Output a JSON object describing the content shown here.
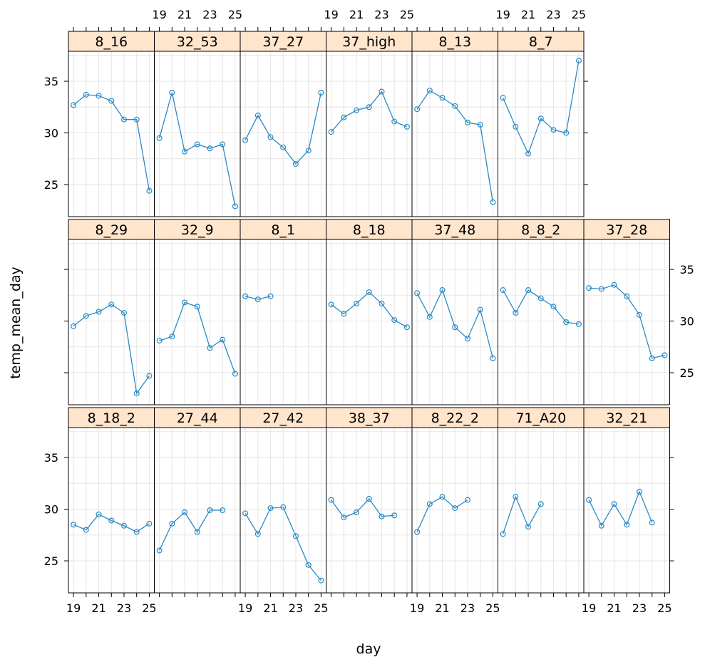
{
  "chart_data": {
    "type": "line",
    "xlabel": "day",
    "ylabel": "temp_mean_day",
    "x_ticks": [
      19,
      21,
      23,
      25
    ],
    "y_ticks": [
      25,
      30,
      35
    ],
    "xlim": [
      18.6,
      25.4
    ],
    "ylim": [
      21.9,
      37.9
    ],
    "grid": true,
    "colors": {
      "line": "#2b8ac4",
      "strip_bg": "#ffe5cc",
      "grid": "#e6e6e6",
      "frame": "#000000"
    },
    "panels": [
      {
        "label": "8_16",
        "row": 0,
        "col": 0,
        "x": [
          19,
          20,
          21,
          22,
          23,
          24,
          25
        ],
        "y": [
          32.7,
          33.7,
          33.6,
          33.1,
          31.3,
          31.3,
          24.4
        ]
      },
      {
        "label": "32_53",
        "row": 0,
        "col": 1,
        "x": [
          19,
          20,
          21,
          22,
          23,
          24,
          25
        ],
        "y": [
          29.5,
          33.9,
          28.2,
          28.9,
          28.5,
          28.9,
          22.9
        ]
      },
      {
        "label": "37_27",
        "row": 0,
        "col": 2,
        "x": [
          19,
          20,
          21,
          22,
          23,
          24,
          25
        ],
        "y": [
          29.3,
          31.7,
          29.6,
          28.6,
          27.0,
          28.3,
          33.9
        ]
      },
      {
        "label": "37_high",
        "row": 0,
        "col": 3,
        "x": [
          19,
          20,
          21,
          22,
          23,
          24,
          25
        ],
        "y": [
          30.1,
          31.5,
          32.2,
          32.5,
          34.0,
          31.1,
          30.6
        ]
      },
      {
        "label": "8_13",
        "row": 0,
        "col": 4,
        "x": [
          19,
          20,
          21,
          22,
          23,
          24,
          25
        ],
        "y": [
          32.3,
          34.1,
          33.4,
          32.6,
          31.0,
          30.8,
          23.3
        ]
      },
      {
        "label": "8_7",
        "row": 0,
        "col": 5,
        "x": [
          19,
          20,
          21,
          22,
          23,
          24,
          25
        ],
        "y": [
          33.4,
          30.6,
          28.0,
          31.4,
          30.3,
          30.0,
          37.0
        ]
      },
      {
        "label": "8_29",
        "row": 1,
        "col": 0,
        "x": [
          19,
          20,
          21,
          22,
          23,
          24,
          25
        ],
        "y": [
          29.5,
          30.5,
          30.9,
          31.6,
          30.8,
          23.0,
          24.7
        ]
      },
      {
        "label": "32_9",
        "row": 1,
        "col": 1,
        "x": [
          19,
          20,
          21,
          22,
          23,
          24,
          25
        ],
        "y": [
          28.1,
          28.5,
          31.8,
          31.4,
          27.4,
          28.2,
          24.9
        ]
      },
      {
        "label": "8_1",
        "row": 1,
        "col": 2,
        "x": [
          19,
          20,
          21
        ],
        "y": [
          32.4,
          32.1,
          32.4
        ]
      },
      {
        "label": "8_18",
        "row": 1,
        "col": 3,
        "x": [
          19,
          20,
          21,
          22,
          23,
          24,
          25
        ],
        "y": [
          31.6,
          30.7,
          31.7,
          32.8,
          31.7,
          30.1,
          29.4
        ]
      },
      {
        "label": "37_48",
        "row": 1,
        "col": 4,
        "x": [
          19,
          20,
          21,
          22,
          23,
          24,
          25
        ],
        "y": [
          32.7,
          30.4,
          33.0,
          29.4,
          28.3,
          31.1,
          26.4
        ]
      },
      {
        "label": "8_8_2",
        "row": 1,
        "col": 5,
        "x": [
          19,
          20,
          21,
          22,
          23,
          24,
          25
        ],
        "y": [
          33.0,
          30.8,
          33.0,
          32.2,
          31.4,
          29.9,
          29.7
        ]
      },
      {
        "label": "37_28",
        "row": 1,
        "col": 6,
        "x": [
          19,
          20,
          21,
          22,
          23,
          24,
          25
        ],
        "y": [
          33.2,
          33.1,
          33.5,
          32.4,
          30.6,
          26.4,
          26.7
        ]
      },
      {
        "label": "8_18_2",
        "row": 2,
        "col": 0,
        "x": [
          19,
          20,
          21,
          22,
          23,
          24,
          25
        ],
        "y": [
          28.5,
          28.0,
          29.5,
          28.9,
          28.4,
          27.8,
          28.6
        ]
      },
      {
        "label": "27_44",
        "row": 2,
        "col": 1,
        "x": [
          19,
          20,
          21,
          22,
          23,
          24
        ],
        "y": [
          26.0,
          28.6,
          29.7,
          27.8,
          29.9,
          29.9
        ]
      },
      {
        "label": "27_42",
        "row": 2,
        "col": 2,
        "x": [
          19,
          20,
          21,
          22,
          23,
          24,
          25
        ],
        "y": [
          29.6,
          27.6,
          30.1,
          30.2,
          27.4,
          24.6,
          23.1
        ]
      },
      {
        "label": "38_37",
        "row": 2,
        "col": 3,
        "x": [
          19,
          20,
          21,
          22,
          23,
          24
        ],
        "y": [
          30.9,
          29.2,
          29.7,
          31.0,
          29.3,
          29.4
        ]
      },
      {
        "label": "8_22_2",
        "row": 2,
        "col": 4,
        "x": [
          19,
          20,
          21,
          22,
          23
        ],
        "y": [
          27.8,
          30.5,
          31.2,
          30.1,
          30.9
        ]
      },
      {
        "label": "71_A20",
        "row": 2,
        "col": 5,
        "x": [
          19,
          20,
          21,
          22
        ],
        "y": [
          27.6,
          31.2,
          28.3,
          30.5
        ]
      },
      {
        "label": "32_21",
        "row": 2,
        "col": 6,
        "x": [
          19,
          20,
          21,
          22,
          23,
          24
        ],
        "y": [
          30.9,
          28.4,
          30.5,
          28.5,
          31.7,
          28.7
        ]
      }
    ]
  }
}
